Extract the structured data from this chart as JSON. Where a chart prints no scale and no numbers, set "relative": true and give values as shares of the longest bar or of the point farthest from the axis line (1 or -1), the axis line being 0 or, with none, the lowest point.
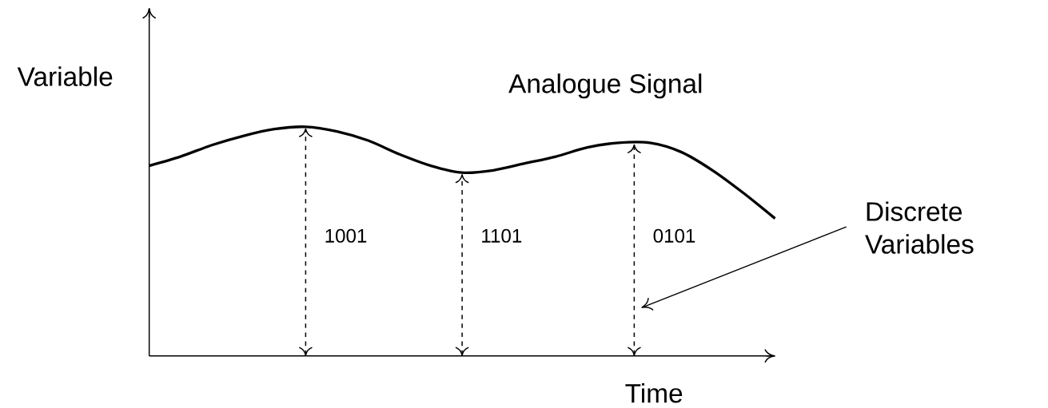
{
  "chart_data": {
    "type": "line",
    "relative": true,
    "xlabel": "Time",
    "ylabel": "Variable",
    "categories": [
      null,
      null,
      null,
      null,
      null,
      null,
      null,
      null,
      null,
      null,
      null,
      null,
      null,
      null,
      null,
      null,
      null,
      null,
      null,
      null,
      null
    ],
    "series": [
      {
        "name": "Analogue Signal",
        "color": "#000000",
        "values": [
          0.83,
          0.87,
          0.92,
          0.96,
          0.99,
          1,
          0.98,
          0.94,
          0.88,
          0.83,
          0.8,
          0.81,
          0.84,
          0.87,
          0.91,
          0.93,
          0.93,
          0.89,
          0.81,
          0.71,
          0.6
        ]
      }
    ],
    "annotations": [
      "1001",
      "1101",
      "0101",
      "Discrete Variables"
    ]
  }
}
